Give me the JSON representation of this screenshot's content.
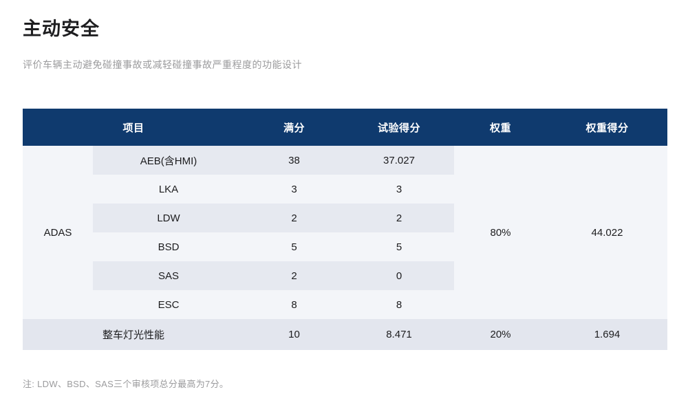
{
  "page": {
    "title": "主动安全",
    "subtitle": "评价车辆主动避免碰撞事故或减轻碰撞事故严重程度的功能设计",
    "footnote": "注: LDW、BSD、SAS三个审核项总分最高为7分。"
  },
  "table": {
    "headers": {
      "item": "项目",
      "full_score": "满分",
      "test_score": "试验得分",
      "weight": "权重",
      "weighted_score": "权重得分"
    },
    "adas_group": {
      "label": "ADAS",
      "weight": "80%",
      "weighted_score": "44.022",
      "rows": [
        {
          "item": "AEB(含HMI)",
          "full_score": "38",
          "test_score": "37.027"
        },
        {
          "item": "LKA",
          "full_score": "3",
          "test_score": "3"
        },
        {
          "item": "LDW",
          "full_score": "2",
          "test_score": "2"
        },
        {
          "item": "BSD",
          "full_score": "5",
          "test_score": "5"
        },
        {
          "item": "SAS",
          "full_score": "2",
          "test_score": "0"
        },
        {
          "item": "ESC",
          "full_score": "8",
          "test_score": "8"
        }
      ]
    },
    "lighting_row": {
      "item": "整车灯光性能",
      "full_score": "10",
      "test_score": "8.471",
      "weight": "20%",
      "weighted_score": "1.694"
    }
  },
  "colors": {
    "header_bg": "#0f3a6e",
    "header_text": "#ffffff",
    "body_bg": "#f3f5f9",
    "stripe_bg": "#e6e9f0",
    "bottom_row_bg": "#e3e6ee",
    "title_text": "#1e1e20",
    "muted_text": "#9b9b9d",
    "cell_text": "#1c1c1e",
    "page_bg": "#ffffff"
  }
}
